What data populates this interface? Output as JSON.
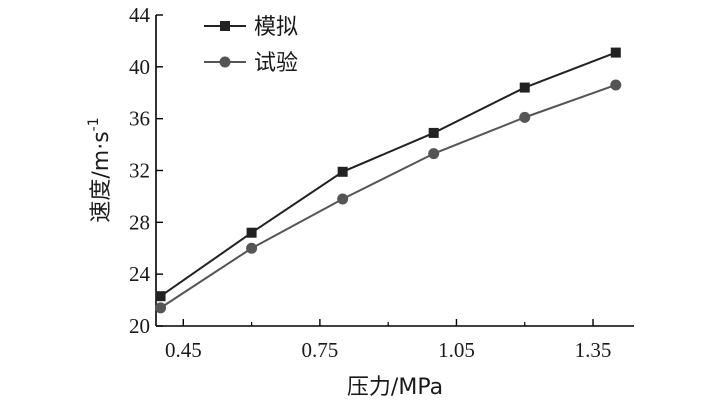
{
  "chart_data": {
    "type": "line",
    "xlabel": "压力/MPa",
    "ylabel_main": "速度/m·s",
    "ylabel_sup": "-1",
    "xlim": [
      0.39,
      1.44
    ],
    "ylim": [
      20,
      44
    ],
    "xticks": [
      0.45,
      0.75,
      1.05,
      1.35
    ],
    "xtick_labels": [
      "0.45",
      "0.75",
      "1.05",
      "1.35"
    ],
    "yticks": [
      20,
      24,
      28,
      32,
      36,
      40,
      44
    ],
    "ytick_labels": [
      "20",
      "24",
      "28",
      "32",
      "36",
      "40",
      "44"
    ],
    "x": [
      0.4,
      0.6,
      0.8,
      1.0,
      1.2,
      1.4
    ],
    "legend_position": "top-left",
    "grid": false,
    "series": [
      {
        "name": "模拟",
        "marker": "square",
        "color": "#222222",
        "values": [
          22.3,
          27.2,
          31.9,
          34.9,
          38.4,
          41.1
        ]
      },
      {
        "name": "试验",
        "marker": "circle",
        "color": "#555555",
        "values": [
          21.4,
          26.0,
          29.8,
          33.3,
          36.1,
          38.6
        ]
      }
    ]
  }
}
